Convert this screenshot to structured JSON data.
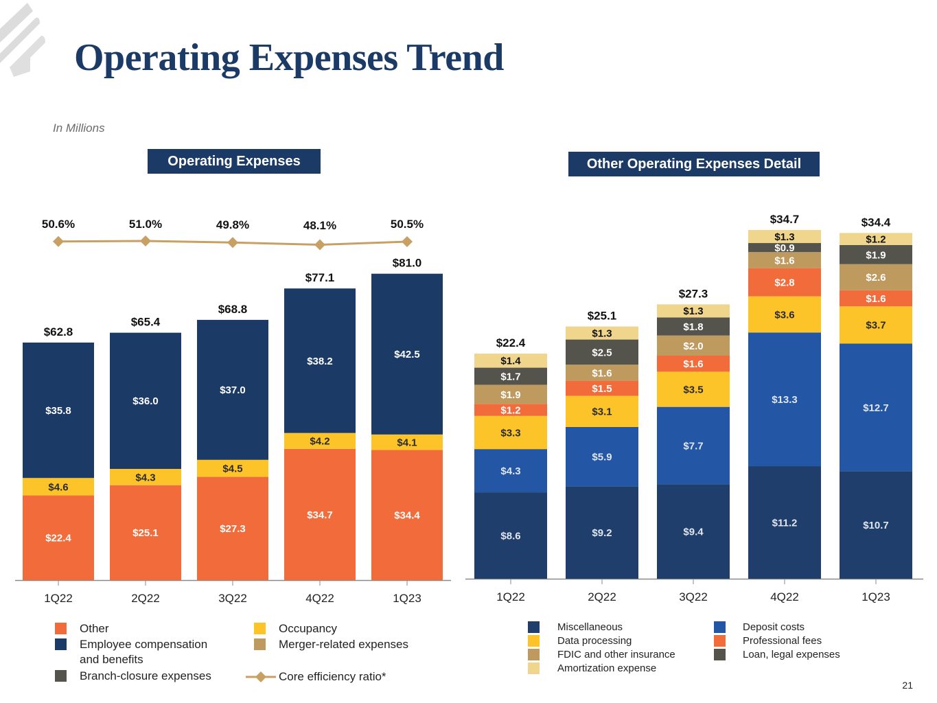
{
  "page": {
    "title": "Operating Expenses Trend",
    "units_note": "In Millions",
    "page_number": "21"
  },
  "colors": {
    "navy": "#1b3a66",
    "other_orange": "#f26b3a",
    "occupancy_yellow": "#fdc42a",
    "merger_tan": "#bf9a5f",
    "branch_gray": "#55544c",
    "efficiency_gold": "#c8a063",
    "misc_navy": "#1f3e6c",
    "deposit_blue": "#2456a6",
    "data_yellow": "#fdc42a",
    "prof_orange": "#f26b3a",
    "fdic_tan": "#bf9a5f",
    "loan_gray": "#55544c",
    "amort_cream": "#f0d58c"
  },
  "chart_data": [
    {
      "type": "bar",
      "stacked": true,
      "title": "Operating Expenses",
      "xlabel": "",
      "ylabel": "",
      "categories": [
        "1Q22",
        "2Q22",
        "3Q22",
        "4Q22",
        "1Q23"
      ],
      "series": [
        {
          "name": "Other",
          "color": "#f26b3a",
          "values": [
            22.4,
            25.1,
            27.3,
            34.7,
            34.4
          ],
          "labels": [
            "$22.4",
            "$25.1",
            "$27.3",
            "$34.7",
            "$34.4"
          ],
          "label_color": "#ffffff"
        },
        {
          "name": "Occupancy",
          "color": "#fdc42a",
          "values": [
            4.6,
            4.3,
            4.5,
            4.2,
            4.1
          ],
          "labels": [
            "$4.6",
            "$4.3",
            "$4.5",
            "$4.2",
            "$4.1"
          ],
          "label_color": "#2a2a2a"
        },
        {
          "name": "Employee compensation and benefits",
          "color": "#1b3a66",
          "values": [
            35.8,
            36.0,
            37.0,
            38.2,
            42.5
          ],
          "labels": [
            "$35.8",
            "$36.0",
            "$37.0",
            "$38.2",
            "$42.5"
          ],
          "label_color": "#ffffff"
        }
      ],
      "totals": [
        62.8,
        65.4,
        68.8,
        77.1,
        81.0
      ],
      "total_labels": [
        "$62.8",
        "$65.4",
        "$68.8",
        "$77.1",
        "$81.0"
      ],
      "line_series": {
        "name": "Core efficiency ratio*",
        "color": "#c8a063",
        "values": [
          50.6,
          51.0,
          49.8,
          48.1,
          50.5
        ],
        "labels": [
          "50.6%",
          "51.0%",
          "49.8%",
          "48.1%",
          "50.5%"
        ]
      },
      "ylim": [
        0,
        85
      ],
      "grid": false,
      "legend": {
        "placement": "bottom",
        "items": [
          {
            "label": "Other",
            "color": "#f26b3a",
            "marker": "square"
          },
          {
            "label": "Employee compensation and benefits",
            "line1": "Employee compensation",
            "line2": "and benefits",
            "color": "#1b3a66",
            "marker": "square"
          },
          {
            "label": "Branch-closure expenses",
            "color": "#55544c",
            "marker": "square"
          },
          {
            "label": "Occupancy",
            "color": "#fdc42a",
            "marker": "square"
          },
          {
            "label": "Merger-related expenses",
            "color": "#bf9a5f",
            "marker": "square"
          },
          {
            "label": "Core efficiency ratio*",
            "color": "#c8a063",
            "marker": "line-diamond"
          }
        ]
      }
    },
    {
      "type": "bar",
      "stacked": true,
      "title": "Other Operating Expenses Detail",
      "xlabel": "",
      "ylabel": "",
      "categories": [
        "1Q22",
        "2Q22",
        "3Q22",
        "4Q22",
        "1Q23"
      ],
      "series": [
        {
          "name": "Miscellaneous",
          "color": "#1f3e6c",
          "values": [
            8.6,
            9.2,
            9.4,
            11.2,
            10.7
          ],
          "labels": [
            "$8.6",
            "$9.2",
            "$9.4",
            "$11.2",
            "$10.7"
          ],
          "label_color": "#dfe6f0"
        },
        {
          "name": "Deposit costs",
          "color": "#2456a6",
          "values": [
            4.3,
            5.9,
            7.7,
            13.3,
            12.7
          ],
          "labels": [
            "$4.3",
            "$5.9",
            "$7.7",
            "$13.3",
            "$12.7"
          ],
          "label_color": "#dfe6f0"
        },
        {
          "name": "Data processing",
          "color": "#fdc42a",
          "values": [
            3.3,
            3.1,
            3.5,
            3.6,
            3.7
          ],
          "labels": [
            "$3.3",
            "$3.1",
            "$3.5",
            "$3.6",
            "$3.7"
          ],
          "label_color": "#2a2a2a"
        },
        {
          "name": "Professional fees",
          "color": "#f26b3a",
          "values": [
            1.2,
            1.5,
            1.6,
            2.8,
            1.6
          ],
          "labels": [
            "$1.2",
            "$1.5",
            "$1.6",
            "$2.8",
            "$1.6"
          ],
          "label_color": "#ffffff"
        },
        {
          "name": "FDIC and other insurance",
          "color": "#bf9a5f",
          "values": [
            1.9,
            1.6,
            2.0,
            1.6,
            2.6
          ],
          "labels": [
            "$1.9",
            "$1.6",
            "$2.0",
            "$1.6",
            "$2.6"
          ],
          "label_color": "#ffffff"
        },
        {
          "name": "Loan, legal expenses",
          "color": "#55544c",
          "values": [
            1.7,
            2.5,
            1.8,
            0.9,
            1.9
          ],
          "labels": [
            "$1.7",
            "$2.5",
            "$1.8",
            "$0.9",
            "$1.9"
          ],
          "label_color": "#ffffff"
        },
        {
          "name": "Amortization expense",
          "color": "#f0d58c",
          "values": [
            1.4,
            1.3,
            1.3,
            1.3,
            1.2
          ],
          "labels": [
            "$1.4",
            "$1.3",
            "$1.3",
            "$1.3",
            "$1.2"
          ],
          "label_color": "#111111"
        }
      ],
      "totals": [
        22.4,
        25.1,
        27.3,
        34.7,
        34.4
      ],
      "total_labels": [
        "$22.4",
        "$25.1",
        "$27.3",
        "$34.7",
        "$34.4"
      ],
      "ylim": [
        0,
        36
      ],
      "grid": false,
      "legend": {
        "placement": "bottom",
        "items": [
          {
            "label": "Miscellaneous",
            "color": "#1f3e6c",
            "marker": "square"
          },
          {
            "label": "Data processing",
            "color": "#fdc42a",
            "marker": "square"
          },
          {
            "label": "FDIC and other insurance",
            "color": "#bf9a5f",
            "marker": "square"
          },
          {
            "label": "Amortization expense",
            "color": "#f0d58c",
            "marker": "square"
          },
          {
            "label": "Deposit costs",
            "color": "#2456a6",
            "marker": "square"
          },
          {
            "label": "Professional fees",
            "color": "#f26b3a",
            "marker": "square"
          },
          {
            "label": "Loan, legal expenses",
            "color": "#55544c",
            "marker": "square"
          }
        ]
      }
    }
  ]
}
